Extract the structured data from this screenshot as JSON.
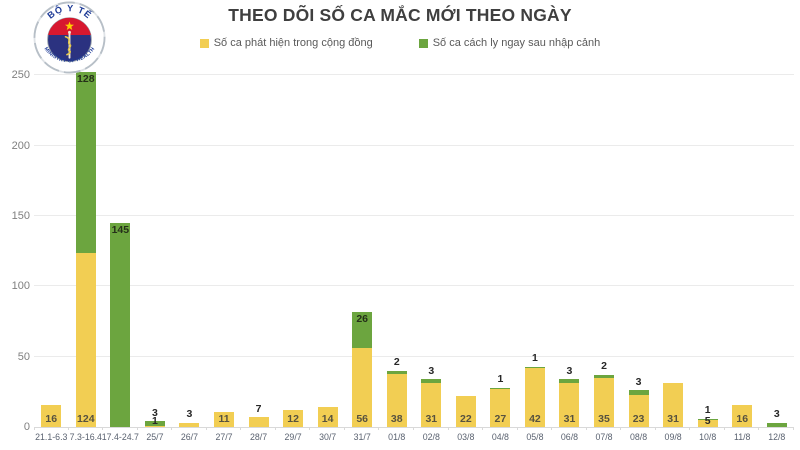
{
  "logo": {
    "top_text": "BỘ Y TẾ",
    "bottom_text": "MINISTRY OF HEALTH"
  },
  "chart_data": {
    "type": "bar",
    "stacked": true,
    "title": "THEO DÕI SỐ CA MẮC MỚI THEO NGÀY",
    "categories": [
      "21.1-6.3",
      "7.3-16.4",
      "17.4-24.7",
      "25/7",
      "26/7",
      "27/7",
      "28/7",
      "29/7",
      "30/7",
      "31/7",
      "01/8",
      "02/8",
      "03/8",
      "04/8",
      "05/8",
      "06/8",
      "07/8",
      "08/8",
      "09/8",
      "10/8",
      "11/8",
      "12/8"
    ],
    "series": [
      {
        "name": "Số ca phát hiện trong cộng đồng",
        "color": "#F2CE53",
        "values": [
          16,
          124,
          0,
          1,
          3,
          11,
          7,
          12,
          14,
          56,
          38,
          31,
          22,
          27,
          42,
          31,
          35,
          23,
          31,
          5,
          16,
          0
        ]
      },
      {
        "name": "Số ca cách ly ngay sau nhập cảnh",
        "color": "#6CA53F",
        "values": [
          0,
          128,
          145,
          3,
          0,
          0,
          0,
          0,
          0,
          26,
          2,
          3,
          0,
          1,
          1,
          3,
          2,
          3,
          0,
          1,
          0,
          3
        ]
      }
    ],
    "y_ticks": [
      0,
      50,
      100,
      150,
      200,
      250
    ],
    "ylim": [
      0,
      258
    ],
    "grid": true,
    "legend_position": "top",
    "colors": {
      "grid": "#ebebeb",
      "axis": "#d9d9d9",
      "title": "#3f3f3f",
      "y_label": "#7f7f7f",
      "x_label": "#5a6270",
      "label_above": "#272727",
      "label_inside_yellow": "#57523f",
      "label_inside_green": "#253019",
      "logo_blue": "#1d3a96",
      "logo_navy": "#2b3280",
      "logo_red": "#d7182f",
      "logo_star": "#ffd200"
    }
  }
}
